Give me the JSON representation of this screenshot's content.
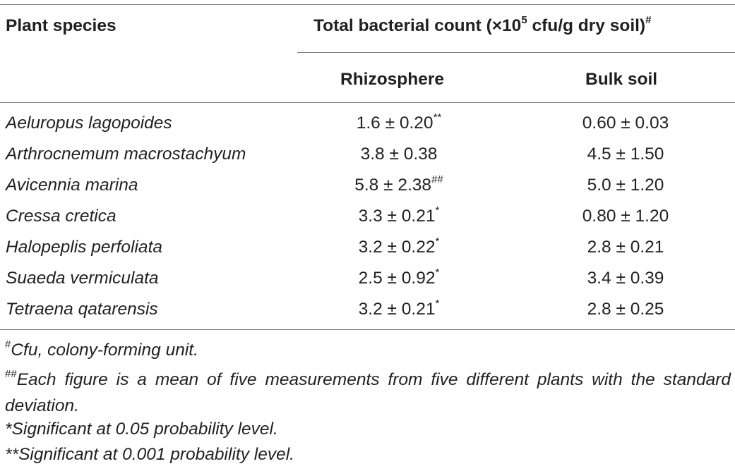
{
  "table": {
    "header": {
      "plant_species": "Plant species",
      "total_count_prefix": "Total bacterial count (×10",
      "total_count_exp": "5",
      "total_count_suffix": " cfu/g dry soil)",
      "total_count_mark": "#",
      "rhizosphere": "Rhizosphere",
      "bulk_soil": "Bulk soil"
    },
    "rows": [
      {
        "species": "Aeluropus lagopoides",
        "rhizosphere": "1.6 ± 0.20",
        "rhizosphere_mark": "**",
        "bulk_soil": "0.60 ± 0.03"
      },
      {
        "species": "Arthrocnemum macrostachyum",
        "rhizosphere": "3.8 ± 0.38",
        "rhizosphere_mark": "",
        "bulk_soil": "4.5 ± 1.50"
      },
      {
        "species": "Avicennia marina",
        "rhizosphere": "5.8 ± 2.38",
        "rhizosphere_mark": "##",
        "bulk_soil": "5.0 ± 1.20"
      },
      {
        "species": "Cressa cretica",
        "rhizosphere": "3.3 ± 0.21",
        "rhizosphere_mark": "*",
        "bulk_soil": "0.80 ± 1.20"
      },
      {
        "species": "Halopeplis perfoliata",
        "rhizosphere": "3.2 ± 0.22",
        "rhizosphere_mark": "*",
        "bulk_soil": "2.8 ± 0.21"
      },
      {
        "species": "Suaeda vermiculata",
        "rhizosphere": "2.5 ± 0.92",
        "rhizosphere_mark": "*",
        "bulk_soil": "3.4 ± 0.39"
      },
      {
        "species": "Tetraena qatarensis",
        "rhizosphere": "3.2 ± 0.21",
        "rhizosphere_mark": "*",
        "bulk_soil": "2.8 ± 0.25"
      }
    ],
    "footnotes": [
      {
        "mark": "#",
        "text": "Cfu, colony-forming unit."
      },
      {
        "mark": "##",
        "text": "Each figure is a mean of five measurements from five different plants with the standard deviation."
      },
      {
        "mark": "",
        "text": "*Significant at 0.05 probability level."
      },
      {
        "mark": "",
        "text": "**Significant at 0.001 probability level."
      }
    ]
  }
}
